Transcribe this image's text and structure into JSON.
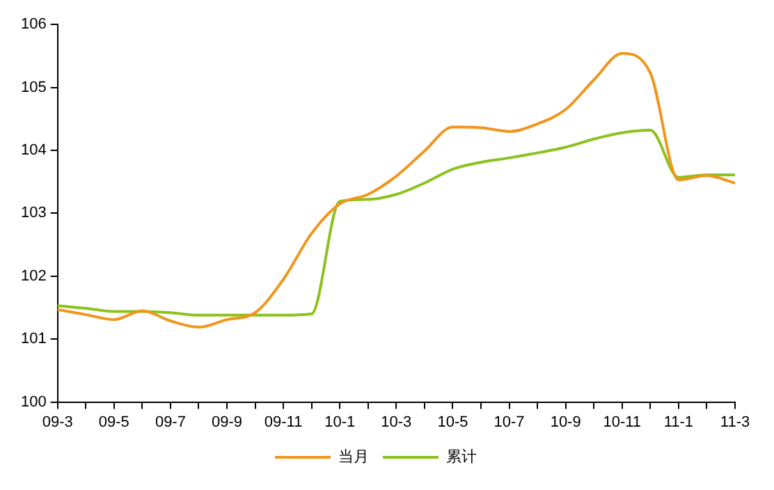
{
  "chart_data": {
    "type": "line",
    "categories": [
      "09-3",
      null,
      "09-5",
      null,
      "09-7",
      null,
      "09-9",
      null,
      "09-11",
      null,
      "10-1",
      null,
      "10-3",
      null,
      "10-5",
      null,
      "10-7",
      null,
      "10-9",
      null,
      "10-11",
      null,
      "11-1",
      null,
      "11-3"
    ],
    "series": [
      {
        "name": "当月",
        "color": "#f0961e",
        "values": [
          101.47,
          101.39,
          101.31,
          101.45,
          101.29,
          101.19,
          101.31,
          101.42,
          101.95,
          102.68,
          103.15,
          103.3,
          103.59,
          103.99,
          104.37,
          104.36,
          104.3,
          104.42,
          104.65,
          105.12,
          105.54,
          105.23,
          103.53,
          103.6,
          103.48
        ]
      },
      {
        "name": "累计",
        "color": "#8cc21e",
        "values": [
          101.53,
          101.49,
          101.44,
          101.44,
          101.42,
          101.38,
          101.38,
          101.38,
          101.38,
          101.4,
          103.19,
          103.22,
          103.3,
          103.48,
          103.7,
          103.81,
          103.88,
          103.96,
          104.05,
          104.18,
          104.28,
          104.32,
          103.57,
          103.61,
          103.61
        ]
      }
    ],
    "ylim": [
      100,
      106
    ],
    "yticks": [
      100,
      101,
      102,
      103,
      104,
      105,
      106
    ],
    "grid": false,
    "legend": "bottom",
    "marker": "none",
    "line_style": "solid"
  }
}
